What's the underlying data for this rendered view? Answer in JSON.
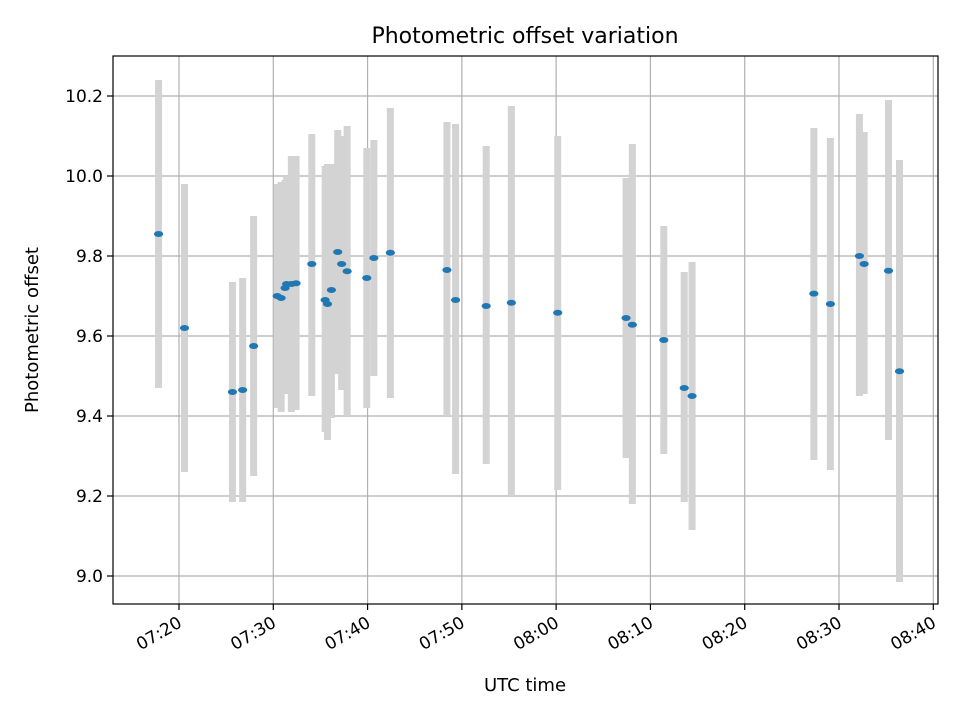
{
  "chart_data": {
    "type": "scatter",
    "title": "Photometric offset variation",
    "xlabel": "UTC time",
    "ylabel": "Photometric offset",
    "x_axis": "time (HH:MM, UTC)",
    "xlim": [
      "07:13:00",
      "08:40:30"
    ],
    "ylim": [
      8.93,
      10.3
    ],
    "x_ticks": [
      "07:20",
      "07:30",
      "07:40",
      "07:50",
      "08:00",
      "08:10",
      "08:20",
      "08:30",
      "08:40"
    ],
    "y_ticks": [
      9.0,
      9.2,
      9.4,
      9.6,
      9.8,
      10.0,
      10.2
    ],
    "y_tick_labels": [
      "9.0",
      "9.2",
      "9.4",
      "9.6",
      "9.8",
      "10.0",
      "10.2"
    ],
    "grid": true,
    "point_color": "#1f77b4",
    "errorbar_color": "#d3d3d3",
    "points": [
      {
        "x": "07:17:50",
        "y": 9.855,
        "lo": 9.47,
        "hi": 10.24
      },
      {
        "x": "07:20:35",
        "y": 9.62,
        "lo": 9.26,
        "hi": 9.98
      },
      {
        "x": "07:25:40",
        "y": 9.46,
        "lo": 9.185,
        "hi": 9.735
      },
      {
        "x": "07:26:45",
        "y": 9.465,
        "lo": 9.185,
        "hi": 9.745
      },
      {
        "x": "07:27:55",
        "y": 9.575,
        "lo": 9.25,
        "hi": 9.9
      },
      {
        "x": "07:30:25",
        "y": 9.7,
        "lo": 9.42,
        "hi": 9.98
      },
      {
        "x": "07:30:50",
        "y": 9.695,
        "lo": 9.41,
        "hi": 9.985
      },
      {
        "x": "07:31:15",
        "y": 9.72,
        "lo": 9.46,
        "hi": 9.99
      },
      {
        "x": "07:31:25",
        "y": 9.73,
        "lo": 9.455,
        "hi": 10.0
      },
      {
        "x": "07:31:55",
        "y": 9.73,
        "lo": 9.41,
        "hi": 10.05
      },
      {
        "x": "07:32:25",
        "y": 9.732,
        "lo": 9.415,
        "hi": 10.05
      },
      {
        "x": "07:34:05",
        "y": 9.78,
        "lo": 9.45,
        "hi": 10.105
      },
      {
        "x": "07:35:30",
        "y": 9.69,
        "lo": 9.36,
        "hi": 10.025
      },
      {
        "x": "07:35:45",
        "y": 9.68,
        "lo": 9.34,
        "hi": 10.03
      },
      {
        "x": "07:36:10",
        "y": 9.715,
        "lo": 9.395,
        "hi": 10.03
      },
      {
        "x": "07:36:50",
        "y": 9.81,
        "lo": 9.505,
        "hi": 10.115
      },
      {
        "x": "07:37:15",
        "y": 9.78,
        "lo": 9.465,
        "hi": 10.1
      },
      {
        "x": "07:37:50",
        "y": 9.762,
        "lo": 9.4,
        "hi": 10.125
      },
      {
        "x": "07:39:55",
        "y": 9.745,
        "lo": 9.42,
        "hi": 10.07
      },
      {
        "x": "07:40:40",
        "y": 9.795,
        "lo": 9.5,
        "hi": 10.09
      },
      {
        "x": "07:42:25",
        "y": 9.808,
        "lo": 9.445,
        "hi": 10.17
      },
      {
        "x": "07:48:25",
        "y": 9.765,
        "lo": 9.4,
        "hi": 10.135
      },
      {
        "x": "07:49:20",
        "y": 9.69,
        "lo": 9.255,
        "hi": 10.13
      },
      {
        "x": "07:52:35",
        "y": 9.675,
        "lo": 9.28,
        "hi": 10.075
      },
      {
        "x": "07:55:15",
        "y": 9.683,
        "lo": 9.2,
        "hi": 10.175
      },
      {
        "x": "08:00:10",
        "y": 9.658,
        "lo": 9.215,
        "hi": 10.1
      },
      {
        "x": "08:07:25",
        "y": 9.645,
        "lo": 9.295,
        "hi": 9.995
      },
      {
        "x": "08:08:05",
        "y": 9.628,
        "lo": 9.18,
        "hi": 10.08
      },
      {
        "x": "08:11:25",
        "y": 9.59,
        "lo": 9.305,
        "hi": 9.875
      },
      {
        "x": "08:13:35",
        "y": 9.47,
        "lo": 9.185,
        "hi": 9.76
      },
      {
        "x": "08:14:25",
        "y": 9.45,
        "lo": 9.115,
        "hi": 9.785
      },
      {
        "x": "08:27:20",
        "y": 9.706,
        "lo": 9.29,
        "hi": 10.12
      },
      {
        "x": "08:29:05",
        "y": 9.68,
        "lo": 9.265,
        "hi": 10.095
      },
      {
        "x": "08:32:10",
        "y": 9.8,
        "lo": 9.45,
        "hi": 10.155
      },
      {
        "x": "08:32:40",
        "y": 9.78,
        "lo": 9.455,
        "hi": 10.11
      },
      {
        "x": "08:35:15",
        "y": 9.763,
        "lo": 9.34,
        "hi": 10.19
      },
      {
        "x": "08:36:25",
        "y": 9.512,
        "lo": 8.985,
        "hi": 10.04
      }
    ]
  }
}
